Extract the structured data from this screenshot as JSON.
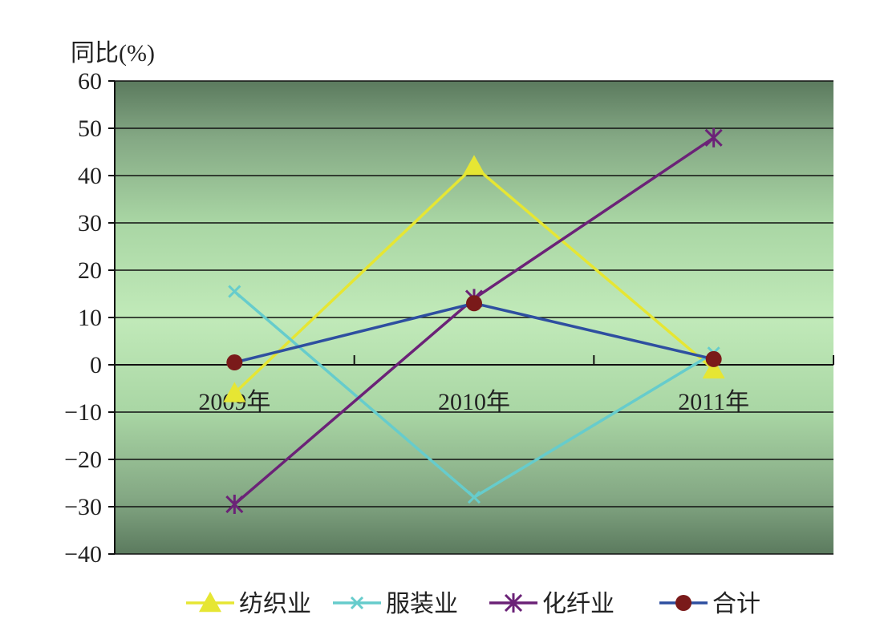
{
  "chart_data": {
    "type": "line",
    "ylabel": "同比(%)",
    "xlabel": "",
    "categories": [
      "2009年",
      "2010年",
      "2011年"
    ],
    "ylim": [
      -40,
      60
    ],
    "yticks": [
      "60",
      "50",
      "40",
      "30",
      "20",
      "10",
      "0",
      "−10",
      "−20",
      "−30",
      "−40"
    ],
    "grid": true,
    "legend_position": "bottom",
    "series": [
      {
        "name": "纺织业",
        "values": [
          -6,
          42,
          -1
        ],
        "color": "#e6e633",
        "marker": "triangle"
      },
      {
        "name": "服装业",
        "values": [
          15.5,
          -28,
          2.5
        ],
        "color": "#66cccc",
        "marker": "x"
      },
      {
        "name": "化纤业",
        "values": [
          -29.5,
          14,
          48
        ],
        "color": "#6b2277",
        "marker": "asterisk"
      },
      {
        "name": "合计",
        "values": [
          0.5,
          13,
          1.2
        ],
        "color": "#2e4fa0",
        "marker": "circle",
        "marker_color": "#7a1a1a"
      }
    ]
  }
}
